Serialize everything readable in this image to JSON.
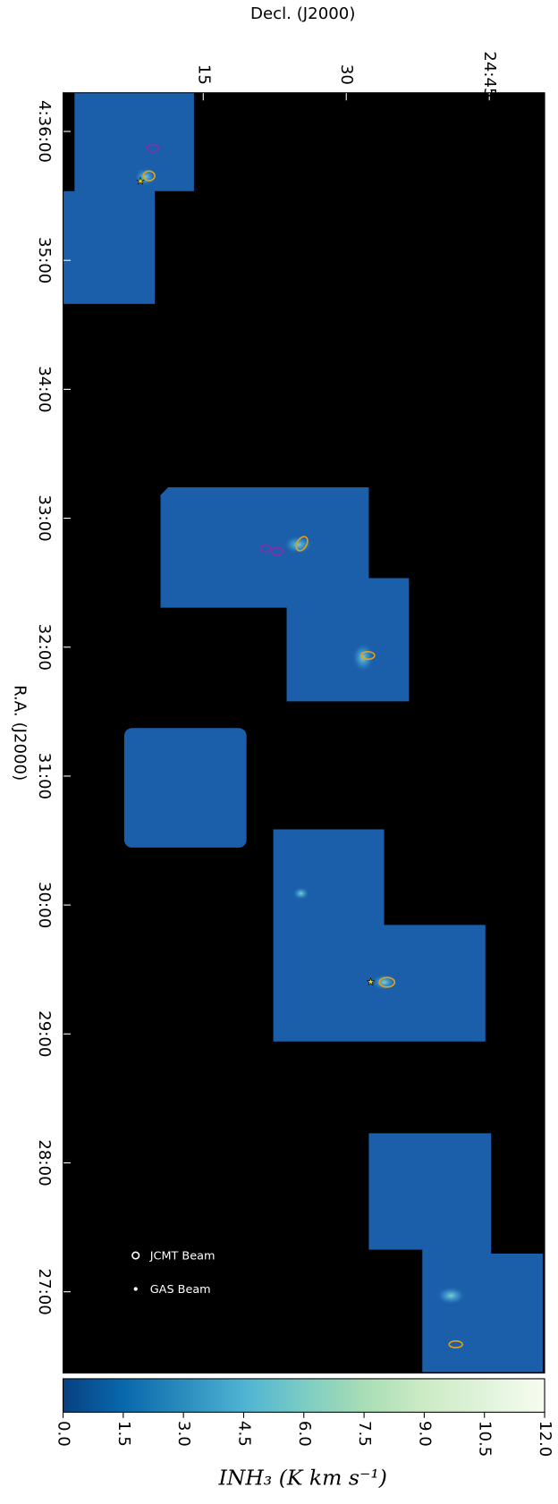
{
  "chart_data": {
    "type": "image",
    "x_label": "Decl. (J2000)",
    "y_label": "R.A. (J2000)",
    "xlim": [
      0.3,
      50.8
    ],
    "xticks": [
      15,
      30,
      {
        "value": 45,
        "label": "24:45"
      }
    ],
    "ylim": [
      36.3,
      26.37
    ],
    "yticks": [
      {
        "value": 36,
        "label": "4:36:00"
      },
      {
        "value": 35,
        "label": "35:00"
      },
      {
        "value": 34,
        "label": "34:00"
      },
      {
        "value": 33,
        "label": "33:00"
      },
      {
        "value": 32,
        "label": "32:00"
      },
      {
        "value": 31,
        "label": "31:00"
      },
      {
        "value": 30,
        "label": "30:00"
      },
      {
        "value": 29,
        "label": "29:00"
      },
      {
        "value": 28,
        "label": "28:00"
      },
      {
        "value": 27,
        "label": "27:00"
      }
    ],
    "legend": [
      "JCMT Beam",
      "GAS Beam"
    ],
    "colorbar": {
      "label": "INH₃ (K km s⁻¹)",
      "lim": [
        0,
        12
      ],
      "ticks": [
        {
          "value": 0,
          "label": "0.0"
        },
        {
          "value": 1.5,
          "label": "1.5"
        },
        {
          "value": 3,
          "label": "3.0"
        },
        {
          "value": 4.5,
          "label": "4.5"
        },
        {
          "value": 6,
          "label": "6.0"
        },
        {
          "value": 7.5,
          "label": "7.5"
        },
        {
          "value": 9,
          "label": "9.0"
        },
        {
          "value": 10.5,
          "label": "10.5"
        },
        {
          "value": 12,
          "label": "12.0"
        }
      ],
      "colormap": [
        "#084081",
        "#0868ac",
        "#2b8cbe",
        "#4eb3d3",
        "#7bccc4",
        "#a8ddb5",
        "#ccebc5",
        "#e0f3db",
        "#f7fcf0"
      ]
    }
  }
}
